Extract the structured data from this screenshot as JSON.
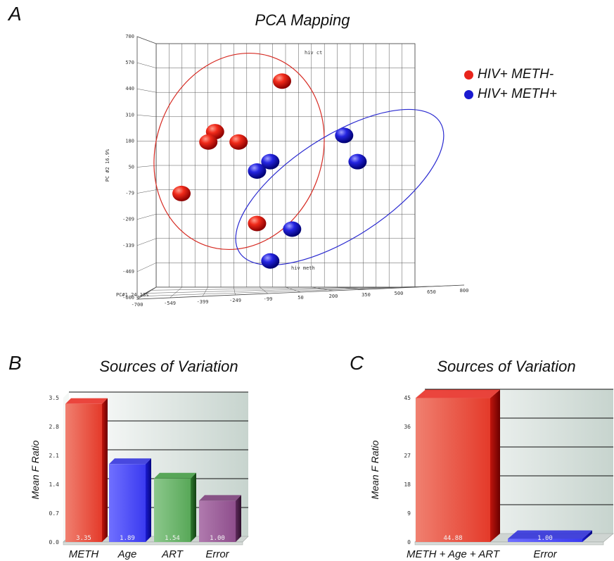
{
  "panels": {
    "a_letter": "A",
    "b_letter": "B",
    "c_letter": "C"
  },
  "colors": {
    "red": "#e8241b",
    "blue": "#1a1ad0",
    "green": "#3f9a3f",
    "purple": "#7a3b78"
  },
  "chart_data": [
    {
      "type": "scatter",
      "title": "PCA Mapping",
      "xlabel": "PC#1 24.13%",
      "ylabel": "PC #2 16.9%",
      "x_ticks": [
        "-700",
        "-549",
        "-399",
        "-249",
        "-99",
        "50",
        "200",
        "350",
        "500",
        "650",
        "800"
      ],
      "y_ticks": [
        "-600",
        "-469",
        "-339",
        "-209",
        "-79",
        "50",
        "180",
        "310",
        "440",
        "570",
        "700"
      ],
      "xlim": [
        -700,
        800
      ],
      "ylim": [
        -600,
        700
      ],
      "annotations": [
        "hiv ct",
        "hiv meth"
      ],
      "series": [
        {
          "name": "HIV+ METH-",
          "color": "#e8241b",
          "points": [
            {
              "x": 50,
              "y": 500
            },
            {
              "x": -349,
              "y": 230
            },
            {
              "x": -389,
              "y": 175
            },
            {
              "x": -209,
              "y": 175
            },
            {
              "x": -549,
              "y": -100
            },
            {
              "x": -99,
              "y": -260
            }
          ]
        },
        {
          "name": "HIV+ METH+",
          "color": "#1a1ad0",
          "points": [
            {
              "x": -99,
              "y": 20
            },
            {
              "x": -20,
              "y": 70
            },
            {
              "x": 420,
              "y": 210
            },
            {
              "x": 500,
              "y": 70
            },
            {
              "x": 110,
              "y": -290
            },
            {
              "x": -20,
              "y": -460
            }
          ]
        }
      ]
    },
    {
      "type": "bar",
      "title": "Sources of Variation",
      "ylabel": "Mean F Ratio",
      "y_ticks": [
        "0.0",
        "0.7",
        "1.4",
        "2.1",
        "2.8",
        "3.5"
      ],
      "ylim": [
        0,
        3.5
      ],
      "categories": [
        "METH",
        "Age",
        "ART",
        "Error"
      ],
      "values": [
        3.35,
        1.89,
        1.54,
        1.0
      ],
      "value_labels": [
        "3.35",
        "1.89",
        "1.54",
        "1.00"
      ],
      "colors": [
        "#e8241b",
        "#2a2adc",
        "#3f9a3f",
        "#7a3b78"
      ]
    },
    {
      "type": "bar",
      "title": "Sources of Variation",
      "ylabel": "Mean F Ratio",
      "y_ticks": [
        "0",
        "9",
        "18",
        "27",
        "36",
        "45"
      ],
      "ylim": [
        0,
        45
      ],
      "categories": [
        "METH + Age + ART",
        "Error"
      ],
      "values": [
        44.88,
        1.0
      ],
      "value_labels": [
        "44.88",
        "1.00"
      ],
      "colors": [
        "#e8241b",
        "#2a2adc"
      ]
    }
  ]
}
